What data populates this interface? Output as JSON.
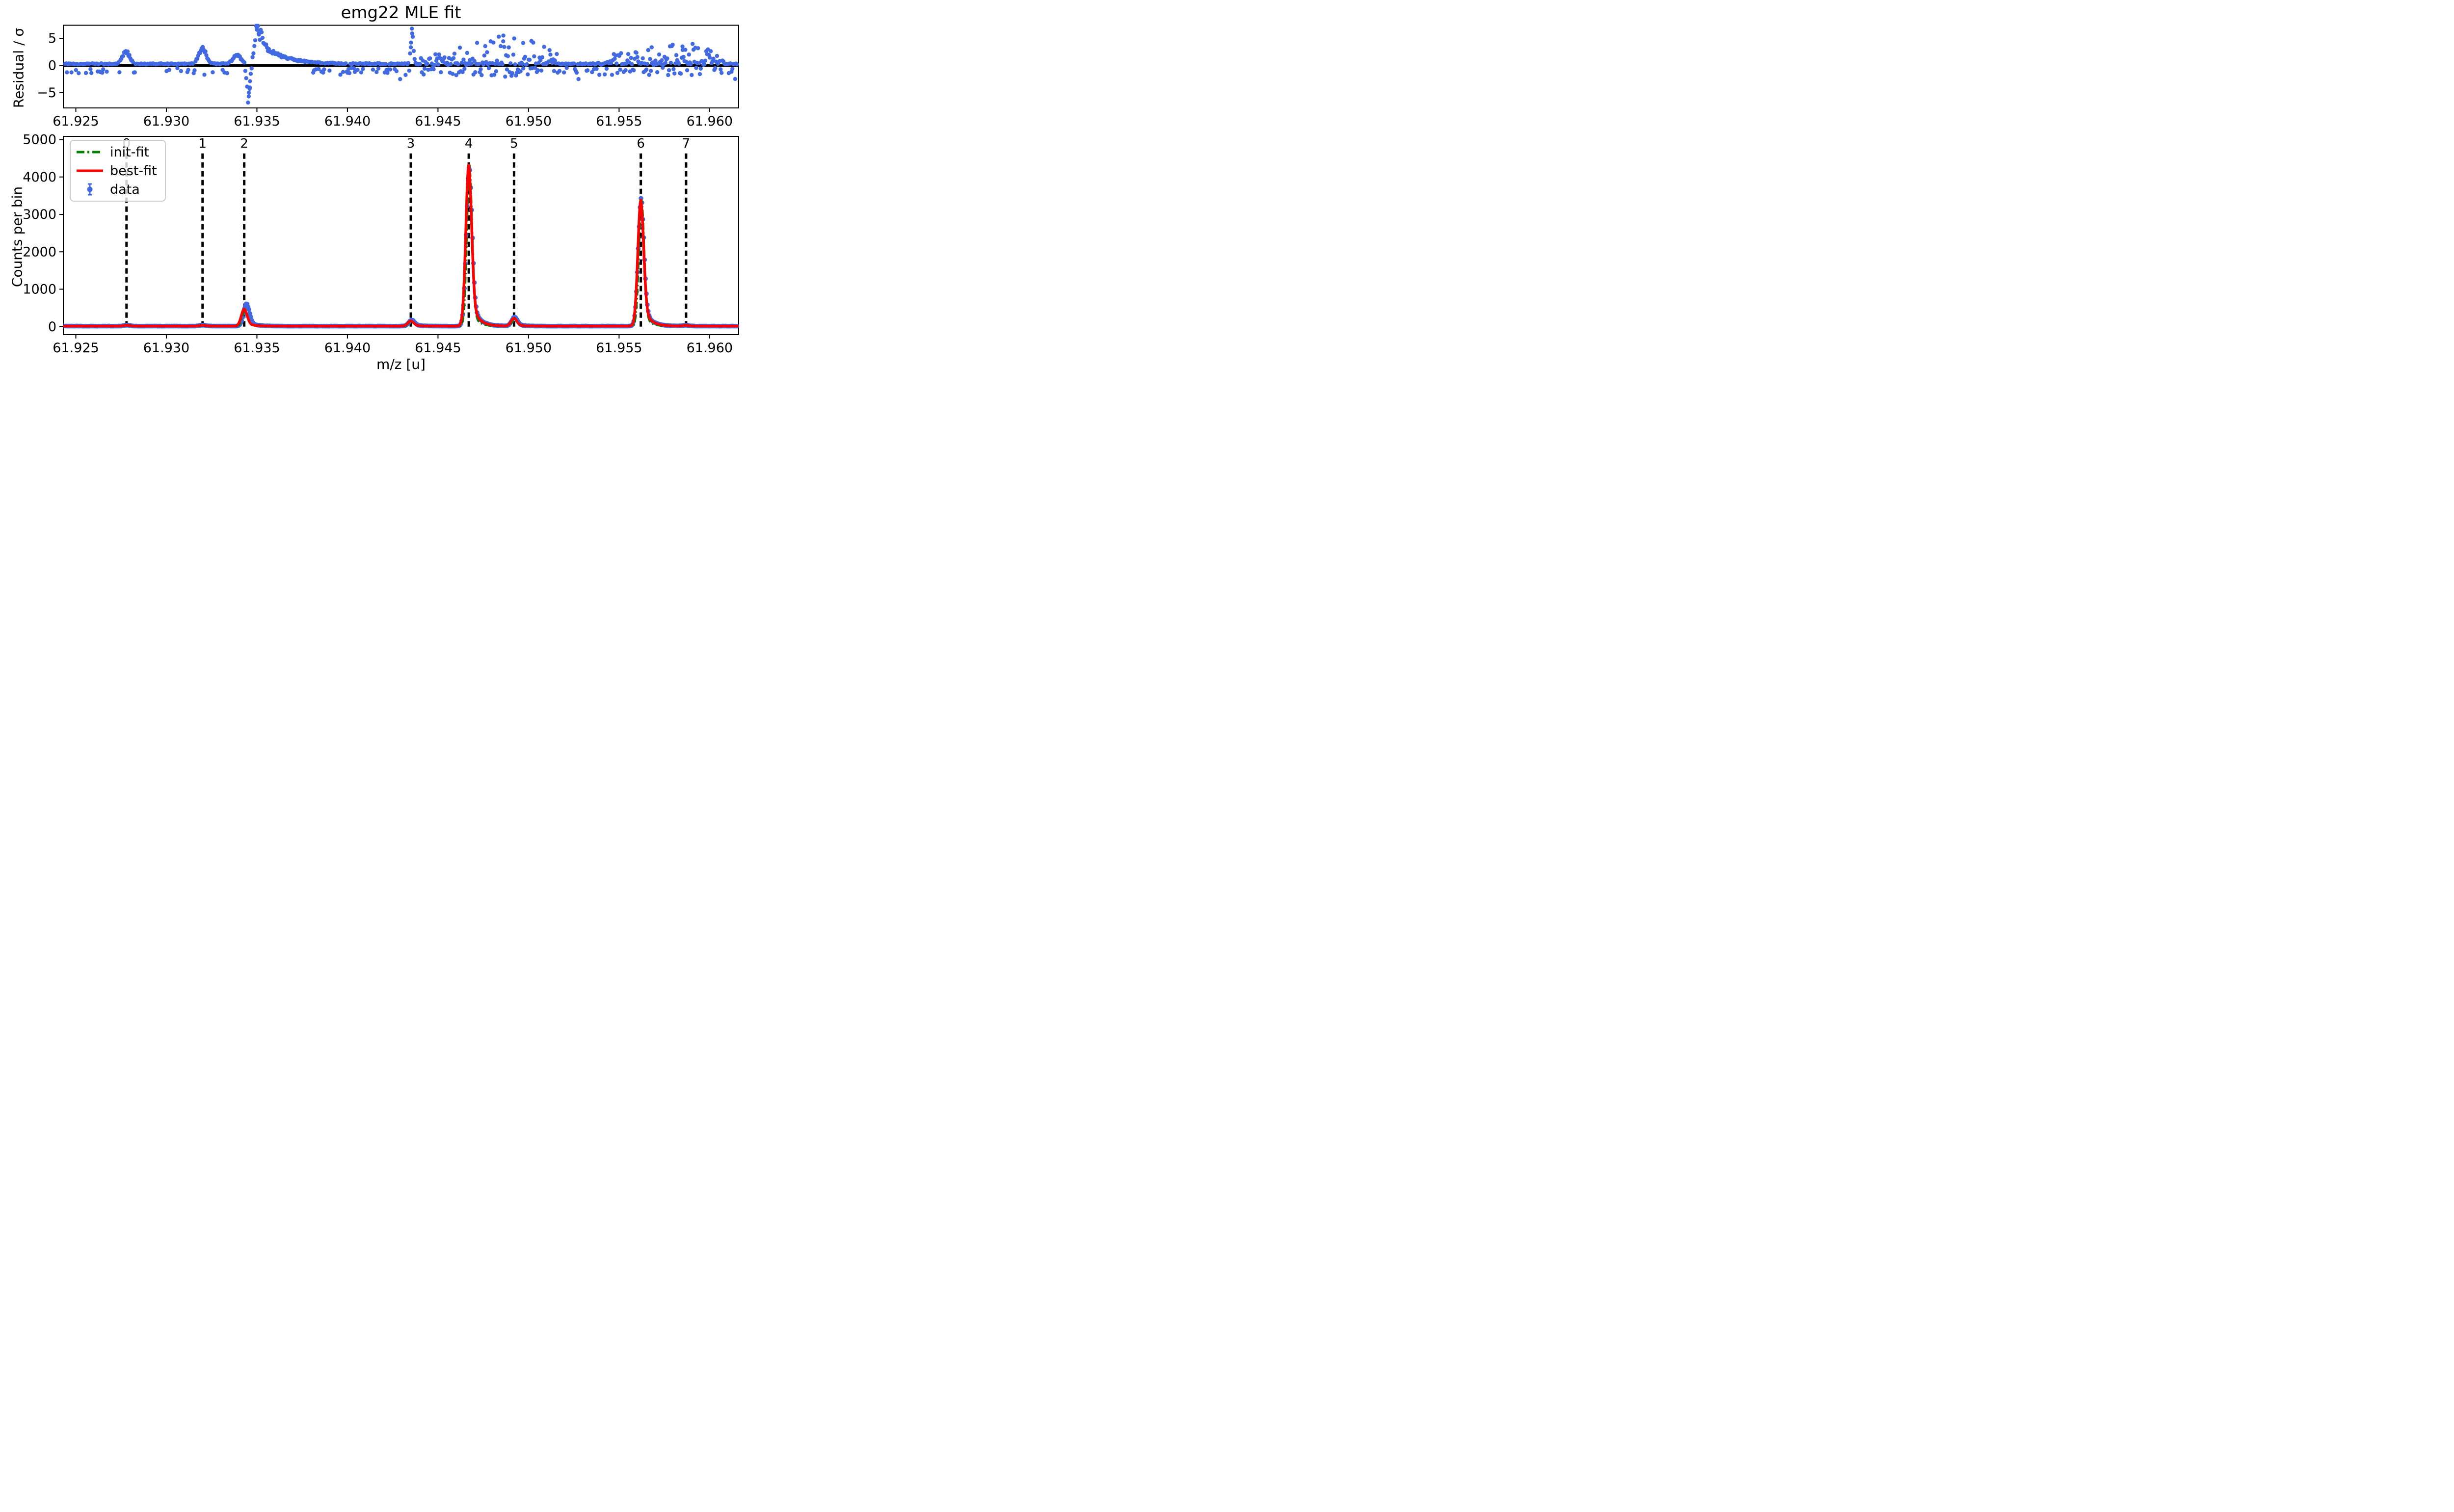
{
  "figure": {
    "title": "emg22 MLE fit",
    "background": "#ffffff"
  },
  "colors": {
    "data_marker": "#4169e1",
    "best_fit": "#ff0000",
    "init_fit": "#008000",
    "axis": "#000000",
    "peak_marker_line": "#000000",
    "legend_border": "#cccccc"
  },
  "legend": {
    "items": [
      {
        "label": "init-fit",
        "color": "#008000",
        "style": "dashdot"
      },
      {
        "label": "best-fit",
        "color": "#ff0000",
        "style": "solid"
      },
      {
        "label": "data",
        "color": "#4169e1",
        "style": "errorbar-point"
      }
    ]
  },
  "chart_data": [
    {
      "type": "scatter",
      "panel": "residuals",
      "ylabel": "Residual / σ",
      "xlim": [
        61.924309,
        61.961603
      ],
      "ylim": [
        -7.8,
        7.4
      ],
      "ytick_values": [
        5,
        0,
        -5
      ],
      "ytick_labels": [
        "5",
        "0",
        "−5"
      ],
      "xtick_values": [
        61.925,
        61.93,
        61.935,
        61.94,
        61.945,
        61.95,
        61.955,
        61.96
      ],
      "xtick_labels": [
        "61.925",
        "61.930",
        "61.935",
        "61.940",
        "61.945",
        "61.950",
        "61.955",
        "61.960"
      ],
      "zero_line_y": 0,
      "grid": false,
      "band_level": 0.3,
      "bin_width_u": 5e-05,
      "key_points": [
        [
          61.9278,
          2.25
        ],
        [
          61.93195,
          3.15
        ],
        [
          61.9321,
          -1.7
        ],
        [
          61.93455,
          -5.7
        ],
        [
          61.9346,
          -4.3
        ],
        [
          61.93462,
          -2.9
        ],
        [
          61.935,
          6.9
        ],
        [
          61.93505,
          7.3
        ],
        [
          61.9351,
          5.9
        ],
        [
          61.9435,
          3.35
        ],
        [
          61.94357,
          5.9
        ],
        [
          61.9486,
          4.45
        ],
        [
          61.9497,
          4.15
        ],
        [
          61.9568,
          3.35
        ],
        [
          61.9585,
          3.5
        ]
      ],
      "features": {
        "bumps": [
          {
            "mz": 61.92777,
            "amp": 2.2,
            "sigma": 0.0002
          },
          {
            "mz": 61.93199,
            "amp": 3.0,
            "sigma": 0.0002
          },
          {
            "mz": 61.9339,
            "amp": 1.6,
            "sigma": 0.00022
          },
          {
            "mz": 61.93503,
            "amp": 7.2,
            "sigma": 0.00014
          },
          {
            "mz": 61.94357,
            "amp": 5.9,
            "sigma": 7e-05
          }
        ],
        "neg_spike": {
          "mz": 61.93452,
          "amp": -5.8,
          "sigma": 9e-05
        },
        "decay_tail": {
          "start": 61.9352,
          "amp": 4.0,
          "tau": 0.00115
        },
        "clusters": [
          {
            "from": 61.944,
            "to": 61.9516,
            "center": 61.9487,
            "peak_env": 4.2,
            "neg_depth": 2.1
          },
          {
            "from": 61.9538,
            "to": 61.9608,
            "center": 61.9579,
            "peak_env": 3.3,
            "neg_depth": 1.8
          }
        ]
      }
    },
    {
      "type": "line+scatter",
      "panel": "spectrum",
      "ylabel": "Counts per bin",
      "xlabel": "m/z [u]",
      "xlim": [
        61.924309,
        61.961603
      ],
      "ylim": [
        -213,
        5085
      ],
      "ytick_values": [
        0,
        1000,
        2000,
        3000,
        4000,
        5000
      ],
      "ytick_labels": [
        "0",
        "1000",
        "2000",
        "3000",
        "4000",
        "5000"
      ],
      "xtick_values": [
        61.925,
        61.93,
        61.935,
        61.94,
        61.945,
        61.95,
        61.955,
        61.96
      ],
      "xtick_labels": [
        "61.925",
        "61.930",
        "61.935",
        "61.940",
        "61.945",
        "61.950",
        "61.955",
        "61.960"
      ],
      "grid": false,
      "baseline_counts": 15,
      "bin_width_u": 5e-05,
      "series": [
        {
          "name": "init-fit",
          "color": "#008000",
          "style": "dashdot"
        },
        {
          "name": "best-fit",
          "color": "#ff0000",
          "style": "solid"
        },
        {
          "name": "data",
          "color": "#4169e1",
          "style": "errorbar-point"
        }
      ],
      "peak_shape": {
        "sigma_u": 0.00016,
        "tail_frac": 0.2,
        "tail_tau_u": 0.00038
      },
      "init_fit_shape": {
        "sigma_u": 0.000145,
        "tail_frac": 0.15,
        "tail_tau_u": 0.0003,
        "mz_offset_u": 4e-05
      },
      "vline_style": {
        "color": "#000000",
        "dash": [
          11,
          7
        ],
        "width": 5
      },
      "peaks": [
        {
          "label": "0",
          "mz": 61.9278,
          "init_fit": 20,
          "best_fit": 22,
          "data": 25,
          "data_mz_shift": 0
        },
        {
          "label": "1",
          "mz": 61.932,
          "init_fit": 20,
          "best_fit": 22,
          "data": 25,
          "data_mz_shift": 0
        },
        {
          "label": "2",
          "mz": 61.9343,
          "init_fit": 430,
          "best_fit": 455,
          "data": 600,
          "data_mz_shift": 0.00013
        },
        {
          "label": "3",
          "mz": 61.9435,
          "init_fit": 128,
          "best_fit": 138,
          "data": 162,
          "data_mz_shift": 5e-05
        },
        {
          "label": "4",
          "mz": 61.9467,
          "init_fit": 4270,
          "best_fit": 4310,
          "data": 4280,
          "data_mz_shift": 3e-05
        },
        {
          "label": "5",
          "mz": 61.9492,
          "init_fit": 198,
          "best_fit": 208,
          "data": 238,
          "data_mz_shift": 3e-05
        },
        {
          "label": "6",
          "mz": 61.9562,
          "init_fit": 3385,
          "best_fit": 3370,
          "data": 3420,
          "data_mz_shift": 2e-05
        },
        {
          "label": "7",
          "mz": 61.9587,
          "init_fit": 16,
          "best_fit": 18,
          "data": 20,
          "data_mz_shift": 0
        }
      ]
    }
  ]
}
